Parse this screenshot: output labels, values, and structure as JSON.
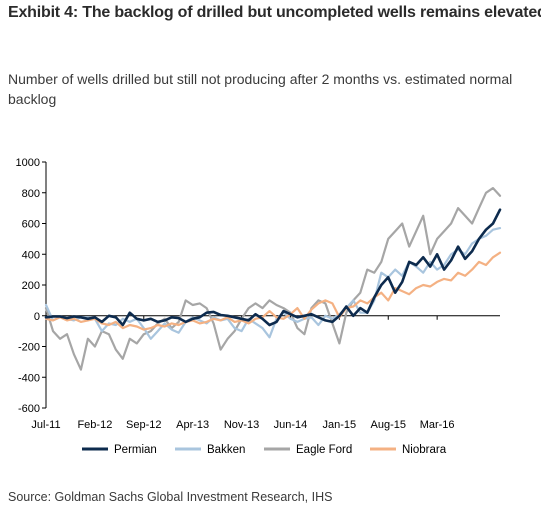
{
  "header": {
    "title": "Exhibit 4: The backlog of drilled but uncompleted wells remains elevated...",
    "subtitle": "Number of wells drilled but still not producing after 2 months vs. estimated normal backlog"
  },
  "footer": {
    "source": "Source: Goldman Sachs Global Investment Research, IHS"
  },
  "chart_data": {
    "type": "line",
    "title": "",
    "xlabel": "",
    "ylabel": "",
    "ylim": [
      -600,
      1000
    ],
    "yticks": [
      "1000",
      "800",
      "600",
      "400",
      "200",
      "0",
      "-200",
      "-400",
      "-600"
    ],
    "xtick_labels": [
      "Jul-11",
      "Feb-12",
      "Sep-12",
      "Apr-13",
      "Nov-13",
      "Jun-14",
      "Jan-15",
      "Aug-15",
      "Mar-16"
    ],
    "x_start": "Jul-11",
    "x_end": "Jun-16",
    "grid": false,
    "legend_position": "bottom",
    "series": [
      {
        "name": "Permian",
        "color": "#0d2b4e",
        "values": [
          -10,
          -5,
          -5,
          -15,
          -5,
          -10,
          -20,
          -10,
          -40,
          0,
          -10,
          -60,
          20,
          -20,
          -30,
          -20,
          -40,
          -30,
          -10,
          -15,
          -40,
          -20,
          -10,
          20,
          25,
          5,
          0,
          -10,
          -20,
          -30,
          10,
          -20,
          -60,
          -40,
          30,
          10,
          -10,
          0,
          10,
          -10,
          -30,
          -40,
          0,
          60,
          0,
          50,
          20,
          120,
          200,
          250,
          150,
          220,
          350,
          330,
          380,
          320,
          400,
          300,
          360,
          450,
          370,
          420,
          500,
          560,
          600,
          690
        ]
      },
      {
        "name": "Bakken",
        "color": "#a9c5de",
        "values": [
          70,
          -30,
          -10,
          -20,
          -30,
          -10,
          -10,
          -20,
          -100,
          -50,
          -60,
          -20,
          -40,
          -20,
          -80,
          -150,
          -100,
          -50,
          -90,
          -110,
          -40,
          -10,
          -30,
          -50,
          -10,
          -30,
          -20,
          -80,
          -100,
          -20,
          -50,
          -80,
          -140,
          -20,
          20,
          -20,
          -40,
          -20,
          -10,
          -60,
          0,
          -20,
          10,
          50,
          100,
          20,
          20,
          100,
          280,
          250,
          300,
          260,
          350,
          320,
          280,
          350,
          300,
          330,
          400,
          430,
          400,
          470,
          500,
          520,
          560,
          570
        ]
      },
      {
        "name": "Eagle Ford",
        "color": "#a6a6a6",
        "values": [
          50,
          -100,
          -150,
          -120,
          -250,
          -350,
          -150,
          -200,
          -100,
          -120,
          -220,
          -280,
          -150,
          -180,
          -120,
          -100,
          -50,
          -20,
          -80,
          -40,
          100,
          70,
          80,
          50,
          -50,
          -220,
          -150,
          -100,
          -20,
          50,
          80,
          50,
          100,
          70,
          50,
          20,
          -80,
          -120,
          50,
          100,
          80,
          -50,
          -180,
          20,
          100,
          150,
          300,
          280,
          350,
          500,
          550,
          600,
          450,
          550,
          650,
          400,
          500,
          550,
          600,
          700,
          650,
          600,
          700,
          800,
          830,
          780
        ]
      },
      {
        "name": "Niobrara",
        "color": "#f4b183",
        "values": [
          -20,
          -30,
          -10,
          -30,
          -20,
          -40,
          -30,
          -20,
          -50,
          -60,
          -40,
          -80,
          -60,
          -70,
          -90,
          -80,
          -60,
          -70,
          -50,
          -60,
          -40,
          -30,
          -50,
          -40,
          -20,
          -30,
          -10,
          -40,
          -30,
          -50,
          -20,
          -10,
          30,
          -10,
          -20,
          10,
          50,
          -20,
          40,
          80,
          100,
          80,
          -10,
          50,
          60,
          100,
          80,
          120,
          150,
          100,
          180,
          160,
          140,
          180,
          200,
          190,
          220,
          240,
          230,
          280,
          260,
          300,
          350,
          330,
          380,
          410
        ]
      }
    ]
  }
}
